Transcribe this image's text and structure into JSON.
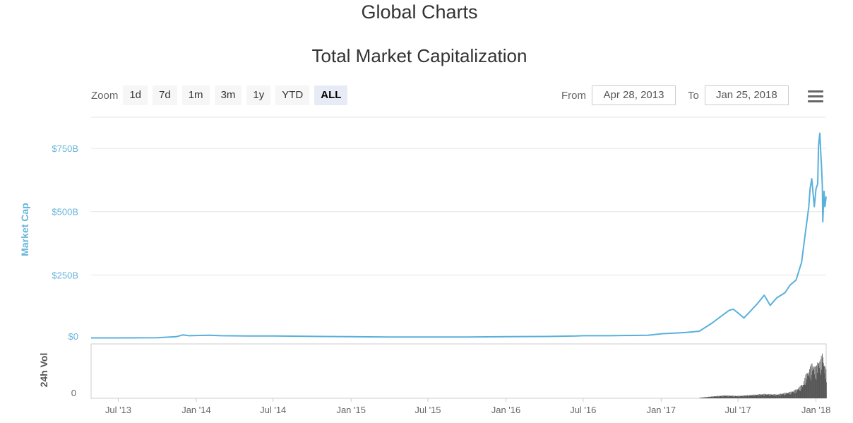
{
  "header": {
    "page_title": "Global Charts",
    "chart_title": "Total Market Capitalization"
  },
  "zoom": {
    "label": "Zoom",
    "buttons": [
      "1d",
      "7d",
      "1m",
      "3m",
      "1y",
      "YTD",
      "ALL"
    ],
    "active": "ALL"
  },
  "range": {
    "from_label": "From",
    "from_value": "Apr 28, 2013",
    "to_label": "To",
    "to_value": "Jan 25, 2018"
  },
  "menu": {
    "icon": "hamburger-menu-icon"
  },
  "colors": {
    "line": "#5ab0dc",
    "volume": "#555555",
    "axis_label": "#67b5d9",
    "vol_label": "#555555"
  },
  "chart_data": [
    {
      "type": "line",
      "title": "Total Market Capitalization",
      "ylabel": "Market Cap",
      "ylim": [
        0,
        820
      ],
      "y_unit": "B USD",
      "yticks": [
        0,
        250,
        500,
        750
      ],
      "ytick_labels": [
        "$0",
        "$250B",
        "$500B",
        "$750B"
      ],
      "xlim": [
        "2013-04-28",
        "2018-01-25"
      ],
      "xticks": [
        "2013-07-01",
        "2014-01-01",
        "2014-07-01",
        "2015-01-01",
        "2015-07-01",
        "2016-01-01",
        "2016-07-01",
        "2017-01-01",
        "2017-07-01",
        "2018-01-01"
      ],
      "xtick_labels": [
        "Jul '13",
        "Jan '14",
        "Jul '14",
        "Jan '15",
        "Jul '15",
        "Jan '16",
        "Jul '16",
        "Jan '17",
        "Jul '17",
        "Jan '18"
      ],
      "grid": true,
      "series": [
        {
          "x": [
            "2013-04-28",
            "2013-07-01",
            "2013-10-01",
            "2013-11-15",
            "2013-11-30",
            "2013-12-15",
            "2014-01-01",
            "2014-02-01",
            "2014-03-01",
            "2014-05-01",
            "2014-07-01",
            "2014-09-01",
            "2014-11-01",
            "2015-01-01",
            "2015-04-01",
            "2015-07-01",
            "2015-10-01",
            "2016-01-01",
            "2016-04-01",
            "2016-06-15",
            "2016-07-01",
            "2016-09-01",
            "2016-12-01",
            "2017-01-05",
            "2017-02-01",
            "2017-03-01",
            "2017-04-01",
            "2017-05-01",
            "2017-05-25",
            "2017-06-10",
            "2017-06-20",
            "2017-07-01",
            "2017-07-15",
            "2017-08-01",
            "2017-08-15",
            "2017-09-01",
            "2017-09-15",
            "2017-10-01",
            "2017-10-20",
            "2017-11-01",
            "2017-11-15",
            "2017-11-28",
            "2017-12-08",
            "2017-12-15",
            "2017-12-18",
            "2017-12-22",
            "2017-12-28",
            "2018-01-01",
            "2018-01-05",
            "2018-01-07",
            "2018-01-10",
            "2018-01-12",
            "2018-01-14",
            "2018-01-16",
            "2018-01-17",
            "2018-01-20",
            "2018-01-22",
            "2018-01-25"
          ],
          "y": [
            1.5,
            1.3,
            2,
            6,
            13,
            10,
            11,
            12,
            10,
            9,
            9,
            8,
            7,
            6,
            5,
            5,
            5,
            6,
            7,
            9,
            10,
            10,
            12,
            18,
            20,
            23,
            28,
            60,
            90,
            110,
            115,
            100,
            80,
            110,
            135,
            170,
            130,
            160,
            180,
            210,
            230,
            300,
            430,
            520,
            590,
            630,
            520,
            590,
            610,
            760,
            810,
            740,
            680,
            600,
            460,
            580,
            520,
            560
          ]
        }
      ]
    },
    {
      "type": "bar",
      "title": "",
      "ylabel": "24h Vol",
      "ytick_labels": [
        "0"
      ],
      "note_series": "daily 24h volume bars, near zero until mid-2017, peaking around Jan 2018",
      "x": [
        "2017-04-01",
        "2017-05-01",
        "2017-06-01",
        "2017-07-01",
        "2017-08-01",
        "2017-09-01",
        "2017-10-01",
        "2017-11-01",
        "2017-11-15",
        "2017-12-01",
        "2017-12-08",
        "2017-12-15",
        "2017-12-22",
        "2018-01-01",
        "2018-01-05",
        "2018-01-10",
        "2018-01-16",
        "2018-01-20",
        "2018-01-25"
      ],
      "y": [
        1,
        4,
        6,
        5,
        7,
        9,
        8,
        13,
        18,
        30,
        50,
        58,
        72,
        62,
        80,
        75,
        95,
        70,
        55
      ],
      "ylim": [
        0,
        100
      ]
    }
  ]
}
